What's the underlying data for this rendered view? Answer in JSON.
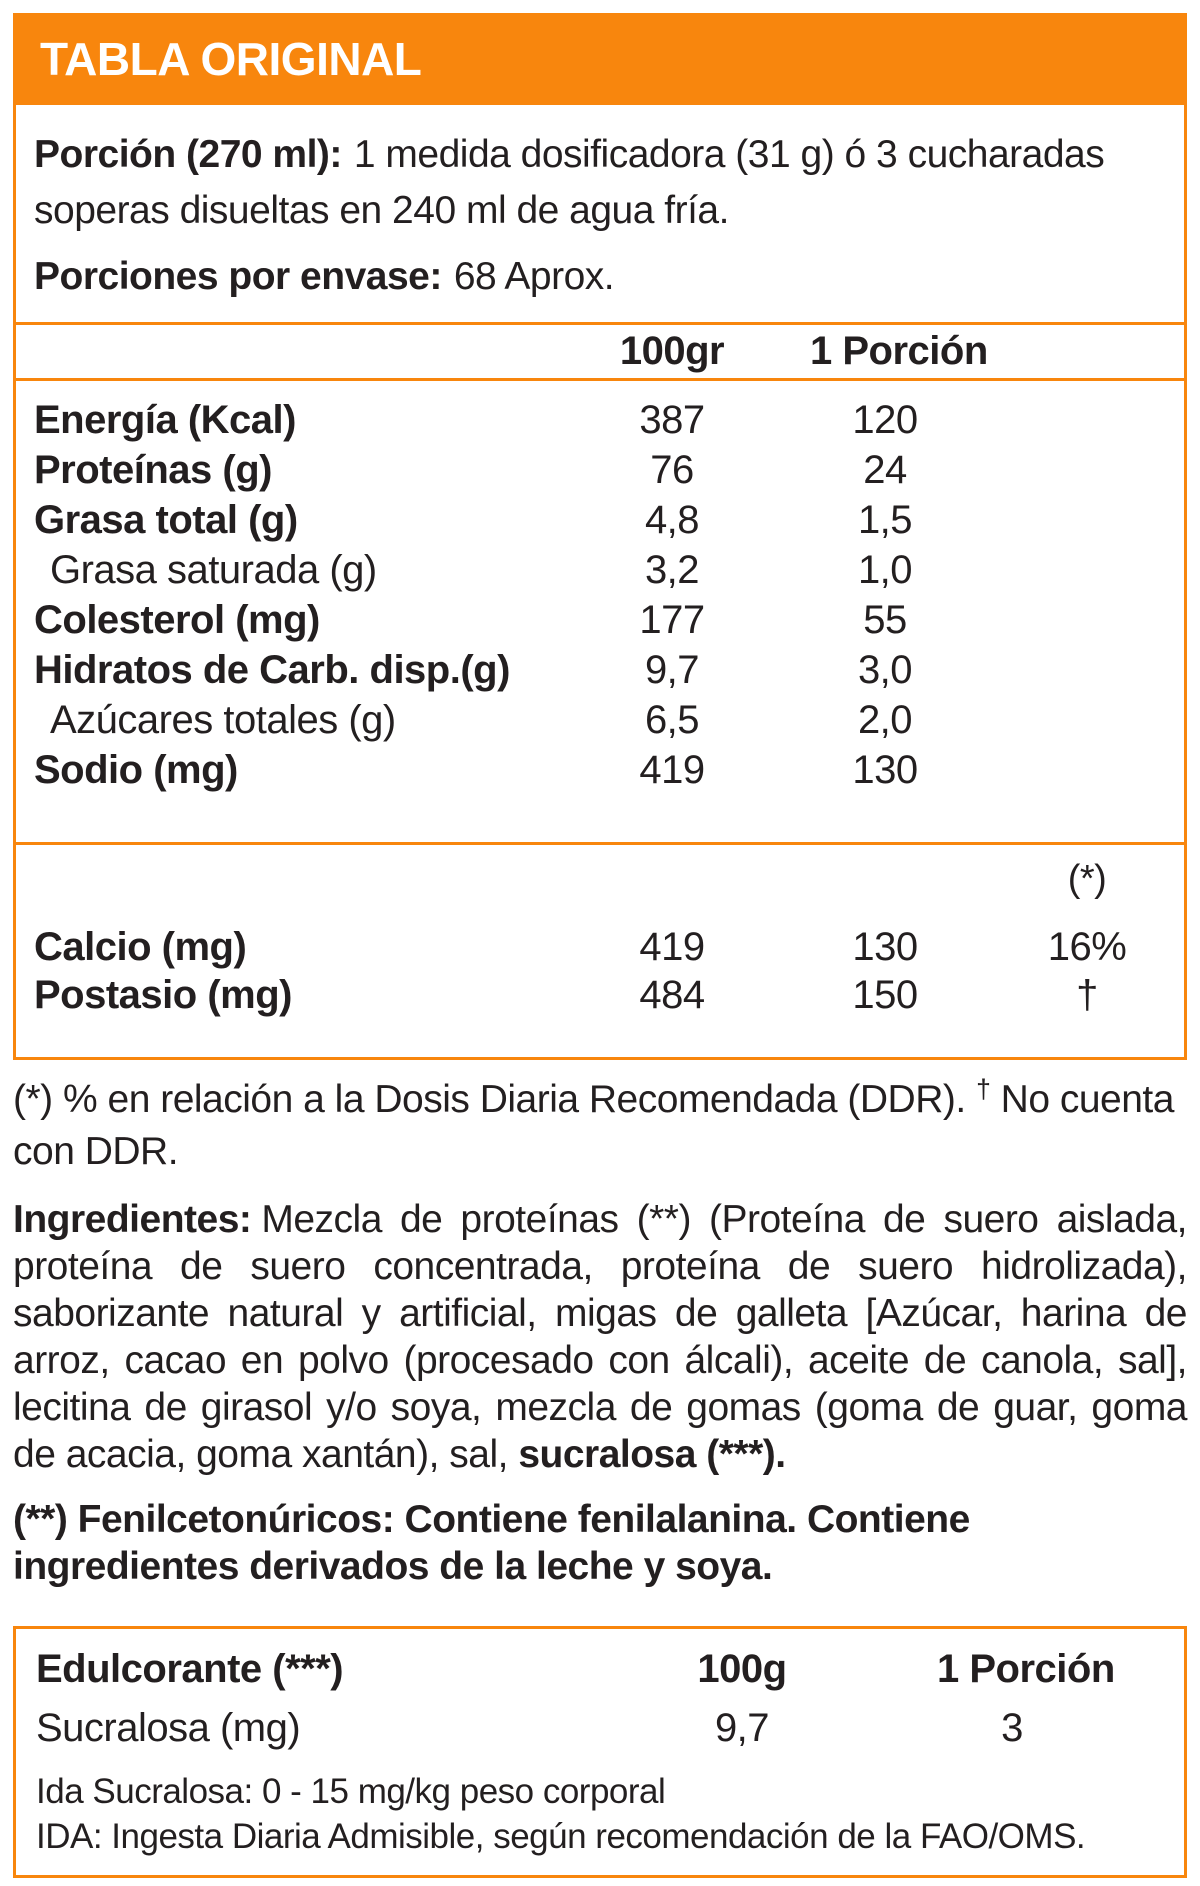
{
  "page": {
    "accent_color": "#F8860D",
    "text_color": "#231F20",
    "background": "#FFFFFF"
  },
  "header": {
    "title": "TABLA ORIGINAL"
  },
  "serving": {
    "portion_label": "Porción (270 ml):",
    "portion_text": "1 medida dosificadora (31 g) ó 3 cucharadas soperas disueltas en 240 ml  de agua fría.",
    "servings_label": "Porciones por envase:",
    "servings_value": "68 Aprox."
  },
  "main_table": {
    "col_100g": "100gr",
    "col_portion": "1 Porción",
    "rows": [
      {
        "label": "Energía (Kcal)",
        "per100": "387",
        "portion": "120"
      },
      {
        "label": "Proteínas (g)",
        "per100": "76",
        "portion": "24"
      },
      {
        "label": "Grasa total (g)",
        "per100": "4,8",
        "portion": "1,5"
      },
      {
        "label": "Grasa saturada (g)",
        "per100": "3,2",
        "portion": "1,0"
      },
      {
        "label": "Colesterol (mg)",
        "per100": "177",
        "portion": "55"
      },
      {
        "label": "Hidratos de Carb. disp.(g)",
        "per100": "9,7",
        "portion": "3,0"
      },
      {
        "label": "Azúcares totales (g)",
        "per100": "6,5",
        "portion": "2,0"
      },
      {
        "label": "Sodio (mg)",
        "per100": "419",
        "portion": "130"
      }
    ]
  },
  "minerals": {
    "ddr_header": "(*)",
    "rows": [
      {
        "label": "Calcio (mg)",
        "per100": "419",
        "portion": "130",
        "ddr": "16%"
      },
      {
        "label": "Postasio (mg)",
        "per100": "484",
        "portion": "150",
        "ddr": "†"
      }
    ]
  },
  "footnote": {
    "prefix": "(*) % en relación a la Dosis Diaria Recomendada (DDR).",
    "dagger": "†",
    "suffix": "No cuenta con DDR."
  },
  "ingredients": {
    "label": "Ingredientes:",
    "body": "Mezcla de proteínas (**) (Proteína de suero aislada, proteína de suero concentrada, proteína de suero hidrolizada), saborizante natural y artificial, migas de galleta [Azúcar, harina de arroz, cacao en polvo (procesado con álcali), aceite de canola, sal], lecitina de girasol y/o soya, mezcla de gomas (goma de guar, goma de acacia, goma xantán), sal,",
    "bold_tail": "sucralosa (***)."
  },
  "phenyl_note": "(**) Fenilcetonúricos: Contiene fenilalanina. Contiene ingredientes derivados de la leche y soya.",
  "sweetener_table": {
    "header_label": "Edulcorante (***)",
    "col_100g": "100g",
    "col_portion": "1 Porción",
    "rows": [
      {
        "label": "Sucralosa (mg)",
        "per100": "9,7",
        "portion": "3"
      }
    ],
    "note1": "Ida Sucralosa: 0 - 15 mg/kg peso corporal",
    "note2": "IDA: Ingesta Diaria Admisible, según recomendación de la FAO/OMS."
  }
}
